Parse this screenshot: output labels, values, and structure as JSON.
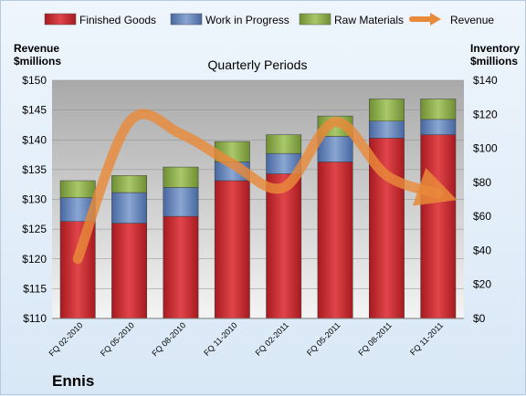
{
  "chart_data": {
    "type": "bar",
    "stacked": true,
    "title": "Quarterly Periods",
    "company": "Ennis",
    "categories": [
      "FQ 02-2010",
      "FQ 05-2010",
      "FQ 08-2010",
      "FQ 11-2010",
      "FQ 02-2011",
      "FQ 05-2011",
      "FQ 08-2011",
      "FQ 11-2011"
    ],
    "series": [
      {
        "name": "Finished Goods",
        "color": "#c0282c",
        "axis": "right",
        "values": [
          57,
          56,
          60,
          81,
          85,
          92,
          106,
          108
        ]
      },
      {
        "name": "Work in Progress",
        "color": "#5b7fb5",
        "axis": "right",
        "values": [
          14,
          18,
          17,
          11,
          12,
          15,
          10,
          9
        ]
      },
      {
        "name": "Raw Materials",
        "color": "#8aab4a",
        "axis": "right",
        "values": [
          10,
          10,
          12,
          12,
          11,
          12,
          13,
          12
        ]
      }
    ],
    "line_series": {
      "name": "Revenue",
      "color": "#e98a3a",
      "axis": "left",
      "values": [
        120,
        143,
        141,
        136,
        132,
        143,
        134,
        131
      ]
    },
    "y_left": {
      "label_line1": "Revenue",
      "label_line2": "$millions",
      "range": [
        110,
        150
      ],
      "ticks": [
        "$110",
        "$115",
        "$120",
        "$125",
        "$130",
        "$135",
        "$140",
        "$145",
        "$150"
      ]
    },
    "y_right": {
      "label_line1": "Inventory",
      "label_line2": "$millions",
      "range": [
        0,
        140
      ],
      "ticks": [
        "$0",
        "$20",
        "$40",
        "$60",
        "$80",
        "$100",
        "$120",
        "$140"
      ]
    },
    "legend_position": "top",
    "grid": true
  }
}
